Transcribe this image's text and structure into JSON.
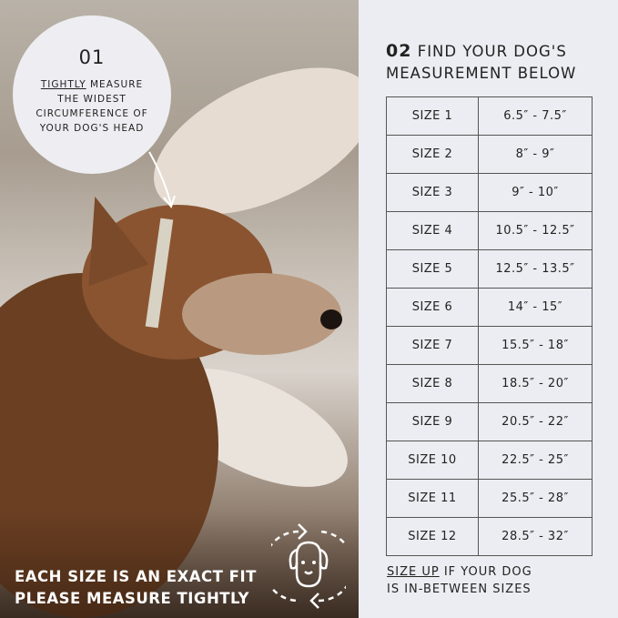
{
  "step1": {
    "number": "01",
    "emphasis": "TIGHTLY",
    "text_line1": " MEASURE",
    "text_line2": "THE WIDEST",
    "text_line3": "CIRCUMFERENCE OF",
    "text_line4": "YOUR DOG'S HEAD"
  },
  "footer": {
    "line1": "EACH SIZE IS AN EXACT FIT",
    "line2": "PLEASE MEASURE TIGHTLY",
    "icon": "dog-head-rotate-icon"
  },
  "step2": {
    "number": "02",
    "title_line1": "FIND YOUR DOG'S",
    "title_line2": "MEASUREMENT BELOW"
  },
  "sizes": [
    {
      "size": "SIZE 1",
      "range": "6.5″ - 7.5″"
    },
    {
      "size": "SIZE 2",
      "range": "8″ - 9″"
    },
    {
      "size": "SIZE 3",
      "range": "9″ - 10″"
    },
    {
      "size": "SIZE 4",
      "range": "10.5″ - 12.5″"
    },
    {
      "size": "SIZE 5",
      "range": "12.5″ - 13.5″"
    },
    {
      "size": "SIZE 6",
      "range": "14″ - 15″"
    },
    {
      "size": "SIZE 7",
      "range": "15.5″ - 18″"
    },
    {
      "size": "SIZE 8",
      "range": "18.5″ - 20″"
    },
    {
      "size": "SIZE 9",
      "range": "20.5″ - 22″"
    },
    {
      "size": "SIZE 10",
      "range": "22.5″ - 25″"
    },
    {
      "size": "SIZE 11",
      "range": "25.5″ - 28″"
    },
    {
      "size": "SIZE 12",
      "range": "28.5″ - 32″"
    }
  ],
  "note": {
    "emphasis": "SIZE UP",
    "line1": " IF YOUR DOG",
    "line2": "IS IN-BETWEEN SIZES"
  }
}
